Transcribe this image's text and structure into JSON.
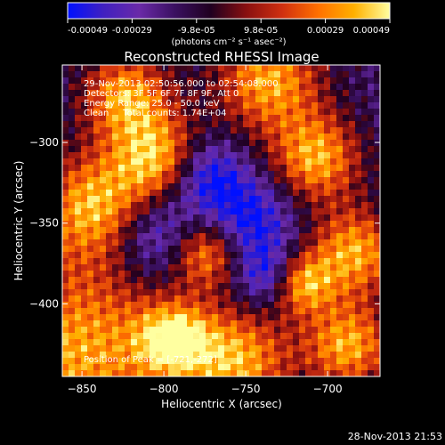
{
  "colorbar": {
    "tick_labels": [
      "-0.00049",
      "-0.00029",
      "-9.8e-05",
      "9.8e-05",
      "0.00029",
      "0.00049"
    ],
    "unit_label": "(photons cm⁻² s⁻¹ asec⁻²)",
    "range": [
      -0.00049,
      0.00049
    ],
    "colormap": [
      "#0010ff",
      "#4020c0",
      "#6a2aa8",
      "#3a1060",
      "#200020",
      "#8a1010",
      "#d03010",
      "#ff7000",
      "#ffb000",
      "#ffffa0"
    ]
  },
  "chart_data": {
    "type": "heatmap",
    "title": "Reconstructed RHESSI Image",
    "xlabel": "Heliocentric X (arcsec)",
    "ylabel": "Heliocentric Y (arcsec)",
    "xlim": [
      -862,
      -668
    ],
    "ylim": [
      -445,
      -252
    ],
    "x_ticks": [
      -850,
      -800,
      -750,
      -700
    ],
    "y_ticks": [
      -300,
      -350,
      -400
    ],
    "peak": {
      "x": -721,
      "y": -272
    },
    "annotations": [
      "29-Nov-2013 02:50:56.000 to 02:54:08.000",
      "Detectors: 3F 5F 6F 7F 8F 9F, Att 0",
      "Energy Range: 25.0 - 50.0 keV",
      "Clean     Total counts: 1.74E+04",
      "Position of Peak = [-721,-272]"
    ]
  },
  "footer": {
    "timestamp": "28-Nov-2013 21:53"
  }
}
